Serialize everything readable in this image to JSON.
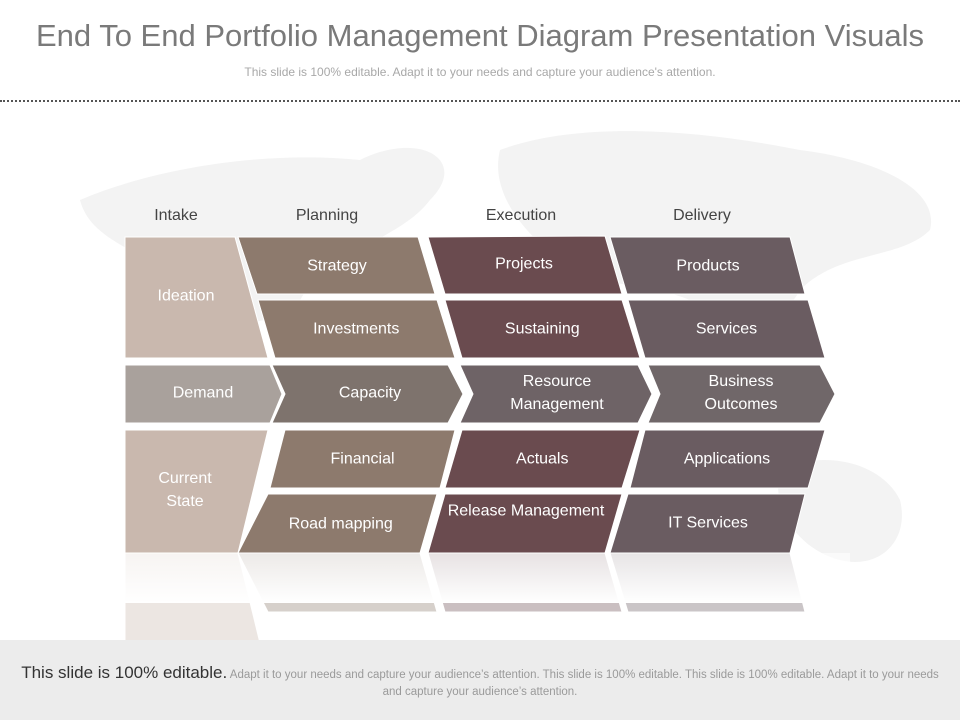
{
  "header": {
    "title": "End To End Portfolio Management Diagram Presentation Visuals",
    "subtitle": "This slide is 100% editable. Adapt it to your needs and capture your audience's attention."
  },
  "columns": [
    "Intake",
    "Planning",
    "Execution",
    "Delivery"
  ],
  "intake": [
    "Ideation",
    "Demand",
    "Current State"
  ],
  "planning": [
    "Strategy",
    "Investments",
    "Capacity",
    "Financial",
    "Road mapping"
  ],
  "execution": [
    "Projects",
    "Sustaining",
    "Resource Management",
    "Actuals",
    "Release Management"
  ],
  "delivery": [
    "Products",
    "Services",
    "Business Outcomes",
    "Applications",
    "IT Services"
  ],
  "footer": {
    "lead": "This slide is 100% editable.",
    "text": "Adapt it to your needs and capture your audience’s attention. This slide is 100% editable. This slide is 100% editable. Adapt it to your needs and capture your audience’s attention."
  }
}
